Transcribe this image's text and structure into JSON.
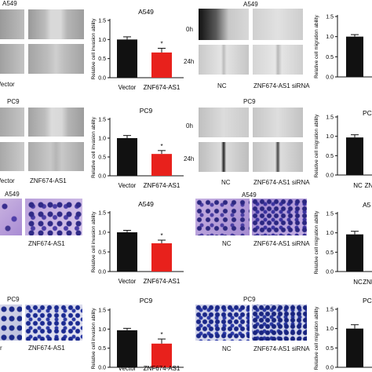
{
  "rows": [
    {
      "cell_line": "A549",
      "assay": "wound",
      "left_chart": {
        "type": "bar",
        "title": "A549",
        "ylabel": "Relative cell invasion ability",
        "ylim": [
          0,
          1.5
        ],
        "yticks": [
          "0.0",
          "0.5",
          "1.0",
          "1.5"
        ],
        "categories": [
          "Vector",
          "ZNF674-AS1"
        ],
        "values": [
          1.0,
          0.66
        ],
        "errors": [
          0.07,
          0.11
        ],
        "colors": [
          "#111111",
          "#e8211c"
        ],
        "annotation": "*"
      },
      "left_img_label": "A549",
      "left_cat_labels": [
        "Vector"
      ],
      "right_img_label": "A549",
      "time_labels": [
        "0h",
        "24h"
      ],
      "right_cat_labels": [
        "NC",
        "ZNF674-AS1 siRNA"
      ],
      "right_chart": {
        "ylabel": "Relative cell migration ability",
        "ylim": [
          0,
          1.5
        ],
        "yticks": [
          "0.0",
          "0.5",
          "1.0",
          "1.5"
        ],
        "values": [
          1.0
        ],
        "errors": [
          0.05
        ],
        "colors": [
          "#111111"
        ]
      }
    },
    {
      "cell_line": "PC9",
      "assay": "wound",
      "left_chart": {
        "type": "bar",
        "title": "PC9",
        "ylabel": "Relative cell invasion ability",
        "ylim": [
          0,
          1.5
        ],
        "yticks": [
          "0.0",
          "0.5",
          "1.0",
          "1.5"
        ],
        "categories": [
          "Vector",
          "ZNF674-AS1"
        ],
        "values": [
          1.0,
          0.58
        ],
        "errors": [
          0.07,
          0.09
        ],
        "colors": [
          "#111111",
          "#e8211c"
        ],
        "annotation": "*"
      },
      "left_img_label": "PC9",
      "left_cat_labels": [
        "Vector",
        "ZNF674-AS1"
      ],
      "right_img_label": "PC9",
      "time_labels": [
        "0h",
        "24h"
      ],
      "right_cat_labels": [
        "NC",
        "ZNF674-AS1 siRNA"
      ],
      "right_chart": {
        "title": "PC",
        "ylabel": "Relative cell migration ability",
        "ylim": [
          0,
          1.5
        ],
        "yticks": [
          "0.0",
          "0.5",
          "1.0",
          "1.5"
        ],
        "categories": [
          "NC",
          "ZN"
        ],
        "values": [
          0.97
        ],
        "errors": [
          0.07
        ],
        "colors": [
          "#111111"
        ]
      }
    },
    {
      "cell_line": "A549",
      "assay": "transwell",
      "left_chart": {
        "type": "bar",
        "title": "A549",
        "ylabel": "Relative cell invasion ability",
        "ylim": [
          0,
          1.5
        ],
        "yticks": [
          "0.0",
          "0.5",
          "1.0",
          "1.5"
        ],
        "categories": [
          "Vector",
          "ZNF674-AS1"
        ],
        "values": [
          1.0,
          0.72
        ],
        "errors": [
          0.05,
          0.08
        ],
        "colors": [
          "#111111",
          "#e8211c"
        ],
        "annotation": "*"
      },
      "left_img_label": "A549",
      "left_cat_labels": [
        "ZNF674-AS1"
      ],
      "right_img_label": "A549",
      "right_cat_labels": [
        "NC",
        "ZNF674-AS1 siRNA"
      ],
      "right_chart": {
        "title": "A5",
        "ylabel": "Relative cell migration ability",
        "ylim": [
          0,
          1.5
        ],
        "yticks": [
          "0.0",
          "0.5",
          "1.0",
          "1.5"
        ],
        "categories": [
          "NC",
          "ZNF"
        ],
        "values": [
          0.96
        ],
        "errors": [
          0.08
        ],
        "colors": [
          "#111111"
        ]
      }
    },
    {
      "cell_line": "PC9",
      "assay": "transwell",
      "left_chart": {
        "type": "bar",
        "title": "PC9",
        "ylabel": "Relative cell invasion ability",
        "ylim": [
          0,
          1.5
        ],
        "yticks": [
          "0.0",
          "0.5",
          "1.0",
          "1.5"
        ],
        "categories": [
          "Vector",
          "ZNF674-AS1"
        ],
        "values": [
          0.97,
          0.62
        ],
        "errors": [
          0.05,
          0.12
        ],
        "colors": [
          "#111111",
          "#e8211c"
        ],
        "annotation": "*"
      },
      "left_img_label": "PC9",
      "left_cat_labels": [
        "r",
        "ZNF674-AS1"
      ],
      "right_img_label": "PC9",
      "right_cat_labels": [
        "NC",
        "ZNF674-AS1 siRNA"
      ],
      "right_chart": {
        "title": "PC",
        "ylabel": "Relative cell migration ability",
        "ylim": [
          0,
          1.5
        ],
        "yticks": [
          "0.0",
          "0.5",
          "1.0",
          "1.5"
        ],
        "values": [
          1.0
        ],
        "errors": [
          0.1
        ],
        "colors": [
          "#111111"
        ]
      }
    }
  ]
}
